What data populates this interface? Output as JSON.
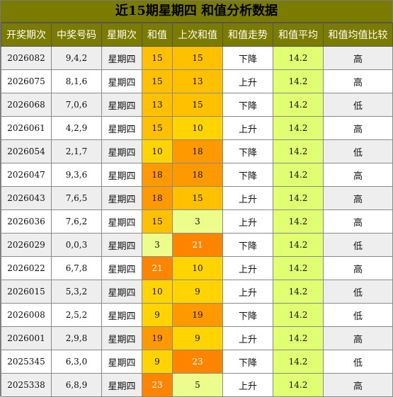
{
  "title": "近15期星期四 和值分析数据",
  "headers": [
    "开奖期次",
    "中奖号码",
    "星期次",
    "和值",
    "上次和值",
    "和值走势",
    "和值平均",
    "和值均值比较"
  ],
  "rows": [
    {
      "period": "2026082",
      "numbers": "9,4,2",
      "weekday": "星期四",
      "sum": "15",
      "prev_sum": "15",
      "trend": "下降",
      "avg": "14.2",
      "compare": "高"
    },
    {
      "period": "2026075",
      "numbers": "8,1,6",
      "weekday": "星期四",
      "sum": "15",
      "prev_sum": "13",
      "trend": "上升",
      "avg": "14.2",
      "compare": "高"
    },
    {
      "period": "2026068",
      "numbers": "7,0,6",
      "weekday": "星期四",
      "sum": "13",
      "prev_sum": "15",
      "trend": "下降",
      "avg": "14.2",
      "compare": "低"
    },
    {
      "period": "2026061",
      "numbers": "4,2,9",
      "weekday": "星期四",
      "sum": "15",
      "prev_sum": "10",
      "trend": "上升",
      "avg": "14.2",
      "compare": "高"
    },
    {
      "period": "2026054",
      "numbers": "2,1,7",
      "weekday": "星期四",
      "sum": "10",
      "prev_sum": "18",
      "trend": "下降",
      "avg": "14.2",
      "compare": "低"
    },
    {
      "period": "2026047",
      "numbers": "9,3,6",
      "weekday": "星期四",
      "sum": "18",
      "prev_sum": "18",
      "trend": "下降",
      "avg": "14.2",
      "compare": "高"
    },
    {
      "period": "2026043",
      "numbers": "7,6,5",
      "weekday": "星期四",
      "sum": "18",
      "prev_sum": "15",
      "trend": "上升",
      "avg": "14.2",
      "compare": "高"
    },
    {
      "period": "2026036",
      "numbers": "7,6,2",
      "weekday": "星期四",
      "sum": "15",
      "prev_sum": "3",
      "trend": "上升",
      "avg": "14.2",
      "compare": "高"
    },
    {
      "period": "2026029",
      "numbers": "0,0,3",
      "weekday": "星期四",
      "sum": "3",
      "prev_sum": "21",
      "trend": "下降",
      "avg": "14.2",
      "compare": "低"
    },
    {
      "period": "2026022",
      "numbers": "6,7,8",
      "weekday": "星期四",
      "sum": "21",
      "prev_sum": "10",
      "trend": "上升",
      "avg": "14.2",
      "compare": "高"
    },
    {
      "period": "2026015",
      "numbers": "5,3,2",
      "weekday": "星期四",
      "sum": "10",
      "prev_sum": "9",
      "trend": "上升",
      "avg": "14.2",
      "compare": "低"
    },
    {
      "period": "2026008",
      "numbers": "2,5,2",
      "weekday": "星期四",
      "sum": "9",
      "prev_sum": "19",
      "trend": "下降",
      "avg": "14.2",
      "compare": "低"
    },
    {
      "period": "2026001",
      "numbers": "2,9,8",
      "weekday": "星期四",
      "sum": "19",
      "prev_sum": "9",
      "trend": "上升",
      "avg": "14.2",
      "compare": "高"
    },
    {
      "period": "2025345",
      "numbers": "6,3,0",
      "weekday": "星期四",
      "sum": "9",
      "prev_sum": "23",
      "trend": "下降",
      "avg": "14.2",
      "compare": "低"
    },
    {
      "period": "2025338",
      "numbers": "6,8,9",
      "weekday": "星期四",
      "sum": "23",
      "prev_sum": "5",
      "trend": "上升",
      "avg": "14.2",
      "compare": "高"
    }
  ],
  "colors": {
    "header_bg": "#7b7b00",
    "row_grey": "#eeeeee",
    "avg_lime": "#e1fe73",
    "sum_3": "#ecfd8b",
    "sum_5": "#ecfd8b",
    "sum_9_10": "#ffd400",
    "sum_13_15": "#ffc000",
    "sum_18_19": "#ff9900",
    "sum_21_23": "#ff8400"
  }
}
